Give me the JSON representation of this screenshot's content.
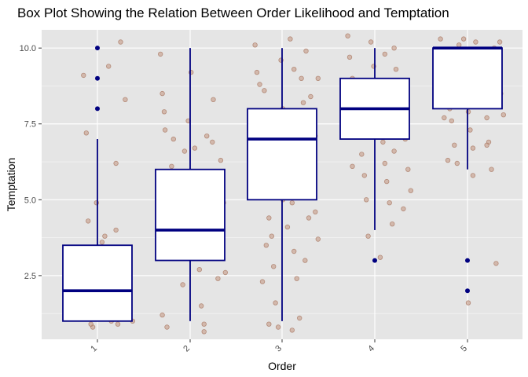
{
  "chart_data": {
    "type": "box",
    "title": "Box Plot Showing the Relation Between Order Likelihood and Temptation",
    "xlabel": "Order",
    "ylabel": "Temptation",
    "categories": [
      "1",
      "2",
      "3",
      "4",
      "5"
    ],
    "ylim": [
      0.4,
      10.6
    ],
    "yticks": [
      2.5,
      5.0,
      7.5,
      10.0
    ],
    "ytick_labels": [
      "2.5",
      "5.0",
      "7.5",
      "10.0"
    ],
    "x_tick_rotation_deg": 45,
    "grid": true,
    "colors": {
      "panel_background": "#e5e5e5",
      "grid": "#ffffff",
      "box_stroke": "#000080",
      "box_fill": "#ffffff",
      "outlier": "#000080",
      "jitter_fill": "#c49a86",
      "jitter_stroke": "#a4705a"
    },
    "boxes": [
      {
        "category": "1",
        "whisker_low": 1.0,
        "q1": 1.0,
        "median": 2.0,
        "q3": 3.5,
        "whisker_high": 7.0,
        "outliers": [
          8.0,
          9.0,
          10.0
        ]
      },
      {
        "category": "2",
        "whisker_low": 1.0,
        "q1": 3.0,
        "median": 4.0,
        "q3": 6.0,
        "whisker_high": 10.0,
        "outliers": []
      },
      {
        "category": "3",
        "whisker_low": 1.0,
        "q1": 5.0,
        "median": 7.0,
        "q3": 8.0,
        "whisker_high": 10.0,
        "outliers": []
      },
      {
        "category": "4",
        "whisker_low": 4.0,
        "q1": 7.0,
        "median": 8.0,
        "q3": 9.0,
        "whisker_high": 10.0,
        "outliers": [
          3.0
        ]
      },
      {
        "category": "5",
        "whisker_low": 6.0,
        "q1": 8.0,
        "median": 10.0,
        "q3": 10.0,
        "whisker_high": 10.0,
        "outliers": [
          2.0,
          3.0
        ]
      }
    ],
    "jitter_points": [
      {
        "category": "1",
        "points": [
          [
            0.82,
            2.3
          ],
          [
            0.85,
            9.1
          ],
          [
            0.88,
            7.2
          ],
          [
            0.9,
            4.3
          ],
          [
            0.95,
            0.8
          ],
          [
            0.98,
            1.4
          ],
          [
            1.05,
            3.6
          ],
          [
            1.08,
            3.8
          ],
          [
            1.12,
            9.4
          ],
          [
            1.15,
            2.6
          ],
          [
            1.2,
            6.2
          ],
          [
            1.25,
            3.3
          ],
          [
            1.3,
            8.3
          ],
          [
            1.32,
            2.9
          ],
          [
            1.38,
            1.0
          ],
          [
            1.25,
            10.2
          ],
          [
            1.1,
            1.5
          ],
          [
            0.92,
            2.5
          ],
          [
            1.02,
            3.1
          ],
          [
            1.18,
            2.2
          ],
          [
            0.86,
            1.1
          ],
          [
            1.1,
            2.0
          ],
          [
            0.96,
            1.7
          ],
          [
            1.3,
            1.2
          ],
          [
            0.99,
            4.9
          ],
          [
            1.22,
            0.9
          ],
          [
            0.88,
            1.9
          ],
          [
            1.06,
            1.3
          ],
          [
            1.28,
            2.2
          ],
          [
            0.93,
            0.9
          ],
          [
            1.15,
            1.0
          ],
          [
            1.34,
            3.0
          ],
          [
            1.01,
            2.7
          ],
          [
            0.9,
            2.6
          ],
          [
            1.2,
            4.0
          ]
        ]
      },
      {
        "category": "2",
        "points": [
          [
            1.68,
            9.8
          ],
          [
            1.7,
            8.5
          ],
          [
            1.72,
            7.9
          ],
          [
            1.74,
            5.4
          ],
          [
            1.7,
            1.2
          ],
          [
            1.75,
            0.8
          ],
          [
            1.8,
            6.1
          ],
          [
            1.82,
            7.0
          ],
          [
            1.85,
            4.8
          ],
          [
            1.88,
            4.3
          ],
          [
            1.9,
            3.2
          ],
          [
            1.92,
            2.2
          ],
          [
            1.95,
            5.6
          ],
          [
            1.98,
            7.6
          ],
          [
            2.02,
            4.6
          ],
          [
            2.05,
            6.7
          ],
          [
            2.08,
            3.6
          ],
          [
            2.1,
            2.7
          ],
          [
            2.12,
            1.5
          ],
          [
            2.15,
            0.9
          ],
          [
            2.18,
            7.1
          ],
          [
            2.2,
            5.5
          ],
          [
            2.22,
            4.1
          ],
          [
            2.25,
            8.3
          ],
          [
            2.28,
            3.2
          ],
          [
            2.3,
            2.4
          ],
          [
            2.33,
            6.3
          ],
          [
            2.36,
            4.9
          ],
          [
            2.38,
            2.6
          ],
          [
            2.15,
            0.65
          ],
          [
            1.78,
            3.9
          ],
          [
            1.86,
            5.9
          ],
          [
            1.96,
            4.4
          ],
          [
            2.06,
            5.1
          ],
          [
            2.12,
            3.5
          ],
          [
            2.24,
            6.9
          ],
          [
            1.73,
            7.3
          ],
          [
            1.83,
            4.2
          ],
          [
            2.35,
            5.8
          ],
          [
            2.01,
            9.2
          ],
          [
            1.94,
            6.6
          ],
          [
            2.28,
            4.6
          ]
        ]
      },
      {
        "category": "3",
        "points": [
          [
            2.7,
            10.1
          ],
          [
            2.72,
            9.2
          ],
          [
            2.75,
            8.8
          ],
          [
            2.78,
            7.4
          ],
          [
            2.8,
            6.1
          ],
          [
            2.82,
            5.3
          ],
          [
            2.85,
            4.4
          ],
          [
            2.88,
            3.8
          ],
          [
            2.9,
            2.8
          ],
          [
            2.92,
            1.6
          ],
          [
            2.95,
            0.8
          ],
          [
            2.98,
            9.6
          ],
          [
            3.0,
            8.0
          ],
          [
            3.02,
            7.2
          ],
          [
            3.05,
            6.6
          ],
          [
            3.08,
            5.7
          ],
          [
            3.1,
            4.9
          ],
          [
            3.12,
            3.3
          ],
          [
            3.15,
            2.4
          ],
          [
            3.18,
            1.1
          ],
          [
            3.2,
            9.0
          ],
          [
            3.22,
            8.2
          ],
          [
            3.25,
            7.7
          ],
          [
            3.28,
            6.9
          ],
          [
            3.3,
            6.3
          ],
          [
            3.32,
            5.4
          ],
          [
            3.35,
            4.6
          ],
          [
            3.38,
            3.7
          ],
          [
            3.1,
            0.7
          ],
          [
            2.85,
            0.9
          ],
          [
            3.25,
            9.9
          ],
          [
            2.8,
            8.6
          ],
          [
            2.9,
            6.8
          ],
          [
            3.0,
            5.0
          ],
          [
            3.05,
            4.1
          ],
          [
            3.15,
            7.9
          ],
          [
            3.2,
            6.4
          ],
          [
            3.3,
            8.4
          ],
          [
            3.35,
            7.1
          ],
          [
            2.75,
            5.8
          ],
          [
            2.95,
            7.5
          ],
          [
            3.12,
            9.3
          ],
          [
            3.28,
            4.4
          ],
          [
            2.88,
            6.0
          ],
          [
            3.38,
            9.0
          ],
          [
            3.08,
            10.3
          ],
          [
            2.82,
            3.5
          ],
          [
            3.24,
            3.0
          ],
          [
            2.78,
            2.3
          ]
        ]
      },
      {
        "category": "4",
        "points": [
          [
            3.7,
            10.4
          ],
          [
            3.72,
            9.7
          ],
          [
            3.75,
            9.0
          ],
          [
            3.78,
            8.6
          ],
          [
            3.8,
            7.8
          ],
          [
            3.82,
            7.1
          ],
          [
            3.85,
            6.5
          ],
          [
            3.88,
            5.8
          ],
          [
            3.9,
            5.0
          ],
          [
            3.92,
            3.8
          ],
          [
            3.95,
            10.2
          ],
          [
            3.98,
            9.4
          ],
          [
            4.0,
            8.8
          ],
          [
            4.02,
            8.1
          ],
          [
            4.05,
            7.5
          ],
          [
            4.08,
            6.9
          ],
          [
            4.1,
            6.2
          ],
          [
            4.12,
            5.6
          ],
          [
            4.15,
            4.9
          ],
          [
            4.18,
            4.2
          ],
          [
            4.2,
            10.0
          ],
          [
            4.22,
            9.3
          ],
          [
            4.25,
            8.7
          ],
          [
            4.28,
            8.2
          ],
          [
            4.3,
            7.6
          ],
          [
            4.32,
            7.0
          ],
          [
            4.35,
            6.0
          ],
          [
            4.38,
            5.3
          ],
          [
            4.05,
            3.1
          ],
          [
            4.3,
            4.7
          ],
          [
            3.75,
            6.1
          ],
          [
            3.9,
            8.3
          ],
          [
            4.1,
            9.8
          ],
          [
            4.25,
            7.3
          ],
          [
            3.86,
            7.4
          ],
          [
            4.14,
            8.5
          ],
          [
            4.34,
            8.9
          ],
          [
            3.96,
            7.7
          ],
          [
            4.2,
            6.6
          ]
        ]
      },
      {
        "category": "5",
        "points": [
          [
            4.7,
            10.3
          ],
          [
            4.72,
            9.7
          ],
          [
            4.75,
            9.1
          ],
          [
            4.78,
            8.6
          ],
          [
            4.8,
            8.0
          ],
          [
            4.82,
            7.6
          ],
          [
            4.85,
            6.8
          ],
          [
            4.88,
            6.2
          ],
          [
            4.9,
            10.1
          ],
          [
            4.92,
            9.5
          ],
          [
            4.95,
            9.0
          ],
          [
            4.98,
            8.4
          ],
          [
            5.0,
            7.9
          ],
          [
            5.02,
            7.3
          ],
          [
            5.05,
            6.7
          ],
          [
            5.08,
            10.2
          ],
          [
            5.1,
            9.8
          ],
          [
            5.12,
            9.3
          ],
          [
            5.15,
            8.8
          ],
          [
            5.18,
            8.2
          ],
          [
            5.2,
            7.7
          ],
          [
            5.22,
            6.9
          ],
          [
            5.25,
            6.0
          ],
          [
            5.28,
            10.0
          ],
          [
            5.3,
            9.6
          ],
          [
            5.32,
            9.0
          ],
          [
            5.35,
            8.5
          ],
          [
            5.38,
            7.8
          ],
          [
            5.05,
            5.8
          ],
          [
            5.0,
            1.6
          ],
          [
            5.3,
            2.9
          ],
          [
            4.78,
            6.3
          ],
          [
            4.95,
            10.3
          ],
          [
            5.15,
            9.9
          ],
          [
            5.25,
            8.7
          ],
          [
            4.86,
            9.9
          ],
          [
            5.1,
            9.4
          ],
          [
            4.92,
            8.3
          ],
          [
            5.34,
            10.2
          ],
          [
            5.2,
            6.8
          ],
          [
            4.74,
            7.7
          ]
        ]
      }
    ]
  }
}
